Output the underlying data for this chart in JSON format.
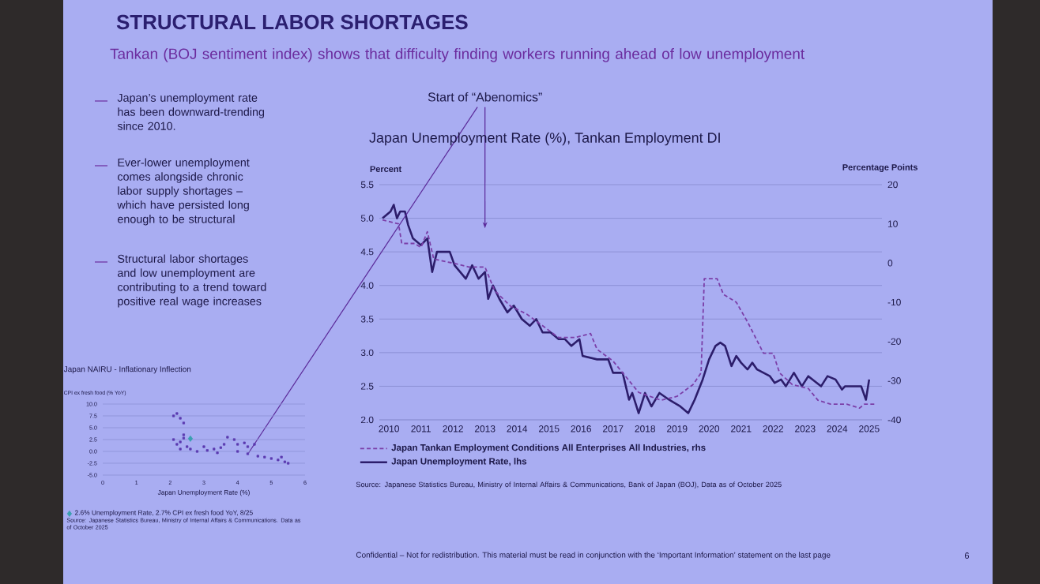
{
  "chart_data": [
    {
      "type": "line",
      "title": "STRUCTURAL LABOR SHORTAGES",
      "subtitle": "Tankan (BOJ sentiment index) shows that difficulty finding workers running ahead of low unemployment",
      "ylabel": "Percent",
      "y2label": "Percentage Points",
      "xlim": [
        2009.7,
        2025.4
      ],
      "xticks": [
        2010,
        2011,
        2012,
        2013,
        2014,
        2015,
        2016,
        2017,
        2018,
        2019,
        2020,
        2021,
        2022,
        2023,
        2024,
        2025
      ],
      "ylim": [
        2.0,
        5.5
      ],
      "yticks": [
        {
          "value": 2.0,
          "label": "2.0"
        },
        {
          "value": 2.5,
          "label": "2.5"
        },
        {
          "value": 3.0,
          "label": "3.0"
        },
        {
          "value": 3.5,
          "label": "3.5"
        },
        {
          "value": 4.0,
          "label": "4.0"
        },
        {
          "value": 4.5,
          "label": "4.5"
        },
        {
          "value": 5.0,
          "label": "5.0"
        },
        {
          "value": 5.5,
          "label": "5.5"
        }
      ],
      "y2lim": [
        -40,
        20
      ],
      "y2ticks": [
        -40,
        -30,
        -20,
        -10,
        0,
        10,
        20
      ],
      "grid": "y",
      "legend": "bottom left",
      "series": [
        {
          "name": "Japan Tankan Employment Conditions All Enterprises All Industries, rhs",
          "color": "#7b3fa8",
          "axis": "y2",
          "line_style": "dashed",
          "x": [
            2009.8,
            2010.3,
            2010.4,
            2010.8,
            2011.0,
            2011.2,
            2011.4,
            2012.0,
            2012.5,
            2013.0,
            2013.3,
            2013.8,
            2014.3,
            2014.8,
            2015.3,
            2015.8,
            2016.3,
            2016.5,
            2017.0,
            2017.5,
            2017.8,
            2018.5,
            2019.0,
            2019.5,
            2019.75,
            2019.85,
            2020.25,
            2020.45,
            2020.85,
            2021.2,
            2021.7,
            2022.0,
            2022.2,
            2022.6,
            2023.1,
            2023.4,
            2023.8,
            2024.3,
            2024.7,
            2024.85,
            2025.2
          ],
          "values": [
            11,
            10,
            5,
            5,
            4,
            8,
            1,
            0,
            -1,
            -1,
            -7,
            -11,
            -13,
            -16,
            -19,
            -19,
            -18,
            -22,
            -25,
            -30,
            -33,
            -35,
            -34,
            -31,
            -28,
            -4,
            -4,
            -8,
            -10,
            -15,
            -23,
            -23,
            -28,
            -31,
            -32,
            -35,
            -36,
            -36,
            -37,
            -36,
            -36
          ]
        },
        {
          "name": "Japan Unemployment Rate, lhs",
          "color": "#2c1d6b",
          "axis": "y",
          "line_style": "solid",
          "x": [
            2009.8,
            2010.05,
            2010.15,
            2010.25,
            2010.35,
            2010.5,
            2010.6,
            2010.75,
            2011.0,
            2011.2,
            2011.35,
            2011.5,
            2011.9,
            2012.05,
            2012.4,
            2012.6,
            2012.8,
            2013.0,
            2013.1,
            2013.25,
            2013.45,
            2013.7,
            2013.9,
            2014.15,
            2014.4,
            2014.6,
            2014.8,
            2015.05,
            2015.3,
            2015.5,
            2015.7,
            2015.95,
            2016.05,
            2016.5,
            2016.85,
            2017.0,
            2017.3,
            2017.5,
            2017.6,
            2017.8,
            2018.0,
            2018.2,
            2018.45,
            2018.75,
            2019.1,
            2019.35,
            2019.55,
            2019.8,
            2020.0,
            2020.2,
            2020.35,
            2020.5,
            2020.7,
            2020.85,
            2021.0,
            2021.2,
            2021.35,
            2021.5,
            2021.7,
            2021.9,
            2022.05,
            2022.25,
            2022.4,
            2022.65,
            2022.9,
            2023.1,
            2023.5,
            2023.7,
            2023.95,
            2024.15,
            2024.25,
            2024.5,
            2024.75,
            2024.9,
            2025.0
          ],
          "values": [
            5.0,
            5.1,
            5.2,
            5.0,
            5.1,
            5.1,
            4.9,
            4.7,
            4.6,
            4.7,
            4.2,
            4.5,
            4.5,
            4.3,
            4.1,
            4.3,
            4.1,
            4.2,
            3.8,
            4.0,
            3.8,
            3.6,
            3.7,
            3.5,
            3.4,
            3.5,
            3.3,
            3.3,
            3.2,
            3.2,
            3.1,
            3.2,
            2.95,
            2.9,
            2.9,
            2.7,
            2.7,
            2.3,
            2.4,
            2.1,
            2.4,
            2.2,
            2.4,
            2.3,
            2.2,
            2.1,
            2.3,
            2.6,
            2.9,
            3.1,
            3.15,
            3.1,
            2.8,
            2.95,
            2.85,
            2.75,
            2.85,
            2.75,
            2.7,
            2.65,
            2.55,
            2.6,
            2.5,
            2.7,
            2.5,
            2.65,
            2.5,
            2.65,
            2.6,
            2.45,
            2.5,
            2.5,
            2.5,
            2.3,
            2.6
          ]
        }
      ],
      "annotations": [
        "Japan Unemployment Rate (%), Tankan Employment DI",
        {
          "text": "Start of “Abenomics”",
          "x": 2013,
          "y": 4.85
        },
        "Japan’s unemployment rate has been downward-trending since 2010.",
        "Ever-lower unemployment comes alongside chronic labor supply shortages – which have persisted long enough to be structural",
        "Structural labor shortages and low unemployment are contributing to a trend toward positive real wage increases",
        "Source: Japanese Statistics Bureau, Ministry of Internal Affairs & Communications, Bank of Japan (BOJ), Data as of October 2025",
        "Confidential – Not for redistribution. This material must be read in conjunction with the ‘Important Information’ statement on the last page",
        "6"
      ]
    },
    {
      "type": "scatter",
      "title": "Japan NAIRU - Inflationary Inflection",
      "ylabel": "CPI ex fresh food (% YoY)",
      "xlabel": "Japan Unemployment Rate (%)",
      "xlim": [
        0,
        6
      ],
      "xticks": [
        0,
        1,
        2,
        3,
        4,
        5,
        6
      ],
      "ylim": [
        -5,
        10
      ],
      "yticks": [
        {
          "value": -5,
          "label": "-5.0"
        },
        {
          "value": -2.5,
          "label": "-2.5"
        },
        {
          "value": 0,
          "label": "0.0"
        },
        {
          "value": 2.5,
          "label": "2.5"
        },
        {
          "value": 5,
          "label": "5.0"
        },
        {
          "value": 7.5,
          "label": "7.5"
        },
        {
          "value": 10,
          "label": "10.0"
        }
      ],
      "grid": "y",
      "legend": "bottom",
      "series": [
        {
          "color": "#5a3ab0",
          "marker": "square",
          "x": [
            2.1,
            2.2,
            2.3,
            2.4,
            2.4,
            2.1,
            2.2,
            2.3,
            2.5,
            2.6,
            2.8,
            3.0,
            3.1,
            3.3,
            3.5,
            3.6,
            3.7,
            3.9,
            4.0,
            4.2,
            4.3,
            4.5,
            4.0,
            4.3,
            4.6,
            4.8,
            5.0,
            5.2,
            5.4,
            5.5,
            5.3,
            3.4,
            2.4,
            2.3
          ],
          "values": [
            7.5,
            8.0,
            7.0,
            6.0,
            3.5,
            2.5,
            1.5,
            2.0,
            1.0,
            0.5,
            0.0,
            1.0,
            0.2,
            0.5,
            0.8,
            1.5,
            3.0,
            2.5,
            1.5,
            1.8,
            1.0,
            1.5,
            0.0,
            -0.5,
            -1.0,
            -1.2,
            -1.5,
            -1.8,
            -2.2,
            -2.5,
            -1.2,
            -0.3,
            2.8,
            0.5
          ]
        },
        {
          "name": "2.6% Unemployment Rate, 2.7% CPI ex fresh food YoY, 8/25",
          "color": "#3aa0b0",
          "marker": "diamond",
          "x": [
            2.6
          ],
          "values": [
            2.7
          ]
        }
      ],
      "annotations": [
        "Source: Japanese Statistics Bureau, Ministry of Internal Affairs & Communications. Data as of October 2025"
      ]
    }
  ]
}
